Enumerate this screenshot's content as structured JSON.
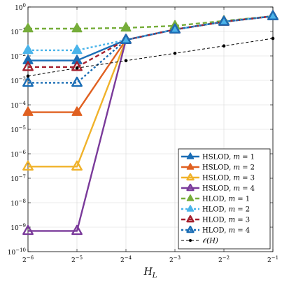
{
  "chart_data": {
    "type": "line",
    "xscale": "log2",
    "yscale": "log10",
    "xlabel_base": "H",
    "xlabel_sub": "L",
    "x": [
      0.015625,
      0.03125,
      0.0625,
      0.125,
      0.25,
      0.5
    ],
    "xlim": [
      0.015625,
      0.5
    ],
    "ylim": [
      1e-10,
      1
    ],
    "xticks": [
      {
        "base": "2",
        "exp": "−6"
      },
      {
        "base": "2",
        "exp": "−5"
      },
      {
        "base": "2",
        "exp": "−4"
      },
      {
        "base": "2",
        "exp": "−3"
      },
      {
        "base": "2",
        "exp": "−2"
      },
      {
        "base": "2",
        "exp": "−1"
      }
    ],
    "yticks": [
      {
        "base": "10",
        "exp": "−10"
      },
      {
        "base": "10",
        "exp": "−9"
      },
      {
        "base": "10",
        "exp": "−8"
      },
      {
        "base": "10",
        "exp": "−7"
      },
      {
        "base": "10",
        "exp": "−6"
      },
      {
        "base": "10",
        "exp": "−5"
      },
      {
        "base": "10",
        "exp": "−4"
      },
      {
        "base": "10",
        "exp": "−3"
      },
      {
        "base": "10",
        "exp": "−2"
      },
      {
        "base": "10",
        "exp": "−1"
      },
      {
        "base": "10",
        "exp": "0"
      }
    ],
    "legend_position": "bottom-right",
    "grid": true,
    "series": [
      {
        "name": "HSLOD, m = 1",
        "label": "HSLOD, ",
        "mvar": "m",
        "mval": " = 1",
        "color": "#1a6db5",
        "style": "solid",
        "marker": "triangle",
        "values": [
          0.0065,
          0.0065,
          0.045,
          0.12,
          0.25,
          0.42
        ]
      },
      {
        "name": "HSLOD, m = 2",
        "label": "HSLOD, ",
        "mvar": "m",
        "mval": " = 2",
        "color": "#e06020",
        "style": "solid",
        "marker": "triangle",
        "values": [
          5e-05,
          5e-05,
          0.045,
          0.12,
          0.25,
          0.42
        ]
      },
      {
        "name": "HSLOD, m = 3",
        "label": "HSLOD, ",
        "mvar": "m",
        "mval": " = 3",
        "color": "#f0b22a",
        "style": "solid",
        "marker": "triangle-open",
        "values": [
          3e-07,
          3e-07,
          0.045,
          0.12,
          0.25,
          0.42
        ]
      },
      {
        "name": "HSLOD, m = 4",
        "label": "HSLOD, ",
        "mvar": "m",
        "mval": " = 4",
        "color": "#7a3a9a",
        "style": "solid",
        "marker": "triangle-open",
        "values": [
          7e-10,
          7e-10,
          0.045,
          0.12,
          0.25,
          0.42
        ]
      },
      {
        "name": "HLOD, m = 1",
        "label": "HLOD, ",
        "mvar": "m",
        "mval": " = 1",
        "color": "#76ad3a",
        "style": "dashed",
        "marker": "triangle",
        "values": [
          0.13,
          0.13,
          0.14,
          0.17,
          0.27,
          0.42
        ]
      },
      {
        "name": "HLOD, m = 2",
        "label": "HLOD, ",
        "mvar": "m",
        "mval": " = 2",
        "color": "#4ab4ea",
        "style": "dotted",
        "marker": "triangle",
        "values": [
          0.017,
          0.017,
          0.045,
          0.12,
          0.25,
          0.42
        ]
      },
      {
        "name": "HLOD, m = 3",
        "label": "HLOD, ",
        "mvar": "m",
        "mval": " = 3",
        "color": "#a5202e",
        "style": "dashed",
        "marker": "triangle-open",
        "values": [
          0.0035,
          0.0035,
          0.045,
          0.12,
          0.25,
          0.42
        ]
      },
      {
        "name": "HLOD, m = 4",
        "label": "HLOD, ",
        "mvar": "m",
        "mval": " = 4",
        "color": "#1a6db5",
        "style": "dotted",
        "marker": "triangle-open",
        "values": [
          0.0008,
          0.0008,
          0.045,
          0.12,
          0.25,
          0.42
        ]
      },
      {
        "name": "O(H)",
        "label": "",
        "mvar": "𝒪(H)",
        "mval": "",
        "color": "#000000",
        "style": "dashed-thin",
        "marker": "dot",
        "values": [
          0.0015,
          0.0032,
          0.0064,
          0.0128,
          0.0256,
          0.052
        ]
      }
    ]
  }
}
